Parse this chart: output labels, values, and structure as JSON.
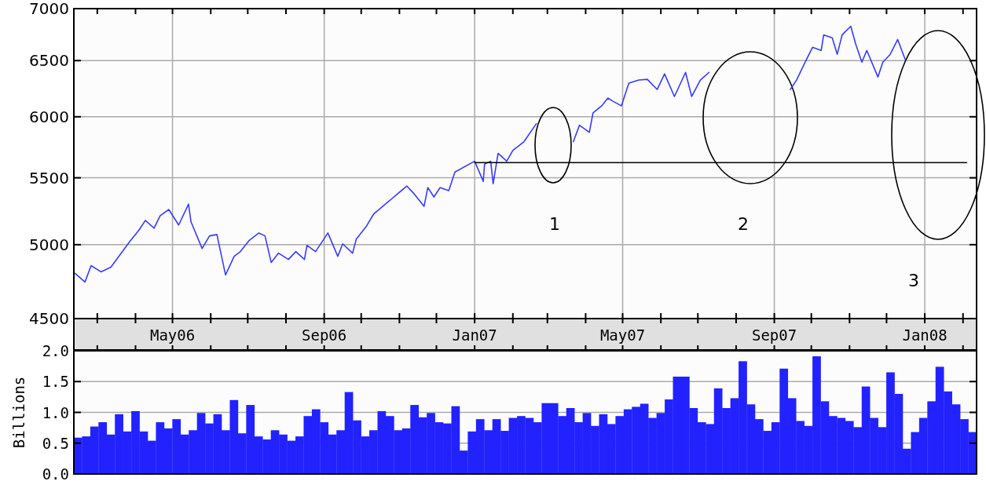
{
  "chart_data": [
    {
      "type": "line",
      "log": "y",
      "grid": true,
      "xlim": [
        "2006-02-10",
        "2008-02-12"
      ],
      "ylim": [
        4500,
        7000
      ],
      "yticks": [
        4500,
        5000,
        5500,
        6000,
        6500,
        7000
      ],
      "xticks": [
        {
          "value": "2006-03-01",
          "label": null
        },
        {
          "value": "2006-04-01",
          "label": null
        },
        {
          "value": "2006-05-01",
          "label": "May06"
        },
        {
          "value": "2006-06-01",
          "label": null
        },
        {
          "value": "2006-07-01",
          "label": null
        },
        {
          "value": "2006-08-01",
          "label": null
        },
        {
          "value": "2006-09-01",
          "label": "Sep06"
        },
        {
          "value": "2006-10-01",
          "label": null
        },
        {
          "value": "2006-11-01",
          "label": null
        },
        {
          "value": "2006-12-01",
          "label": null
        },
        {
          "value": "2007-01-01",
          "label": "Jan07"
        },
        {
          "value": "2007-02-01",
          "label": null
        },
        {
          "value": "2007-03-01",
          "label": null
        },
        {
          "value": "2007-04-01",
          "label": null
        },
        {
          "value": "2007-05-01",
          "label": "May07"
        },
        {
          "value": "2007-06-01",
          "label": null
        },
        {
          "value": "2007-07-01",
          "label": null
        },
        {
          "value": "2007-08-01",
          "label": null
        },
        {
          "value": "2007-09-01",
          "label": "Sep07"
        },
        {
          "value": "2007-10-01",
          "label": null
        },
        {
          "value": "2007-11-01",
          "label": null
        },
        {
          "value": "2007-12-01",
          "label": null
        },
        {
          "value": "2008-01-01",
          "label": "Jan08"
        },
        {
          "value": "2008-02-01",
          "label": null
        }
      ],
      "series": [
        {
          "color": "#3a3aff",
          "x": [
            "2006-02-11",
            "2006-02-19",
            "2006-02-24",
            "2006-03-04",
            "2006-03-12",
            "2006-03-27",
            "2006-04-04",
            "2006-04-09",
            "2006-04-16",
            "2006-04-21",
            "2006-04-28",
            "2006-05-06",
            "2006-05-14",
            "2006-05-16",
            "2006-05-25",
            "2006-05-31",
            "2006-06-06",
            "2006-06-13",
            "2006-06-20",
            "2006-06-25",
            "2006-07-02",
            "2006-07-10",
            "2006-07-15",
            "2006-07-20",
            "2006-07-26",
            "2006-08-03",
            "2006-08-09",
            "2006-08-16",
            "2006-08-18",
            "2006-08-25",
            "2006-09-04",
            "2006-09-12",
            "2006-09-16",
            "2006-09-24",
            "2006-09-27",
            "2006-10-05",
            "2006-10-11",
            "2006-10-26",
            "2006-11-07",
            "2006-11-13",
            "2006-11-21",
            "2006-11-24",
            "2006-11-29",
            "2006-12-04",
            "2006-12-11",
            "2006-12-16",
            "2007-01-01",
            "2007-01-08",
            "2007-01-09",
            "2007-01-14",
            "2007-01-16",
            "2007-01-20",
            "2007-01-27",
            "2007-02-01",
            "2007-02-10",
            "2007-02-20",
            "2007-03-07",
            "2007-03-22",
            "2007-03-27",
            "2007-04-04",
            "2007-04-07",
            "2007-04-14",
            "2007-04-19",
            "2007-04-23",
            "2007-04-30",
            "2007-05-06",
            "2007-05-14",
            "2007-05-21",
            "2007-05-29",
            "2007-06-04",
            "2007-06-12",
            "2007-06-21",
            "2007-06-26",
            "2007-07-03",
            "2007-07-10",
            "2007-08-13",
            "2007-09-14",
            "2007-09-19",
            "2007-09-26",
            "2007-10-02",
            "2007-10-09",
            "2007-10-11",
            "2007-10-18",
            "2007-10-22",
            "2007-10-26",
            "2007-11-02",
            "2007-11-06",
            "2007-11-11",
            "2007-11-15",
            "2007-11-24",
            "2007-11-28",
            "2007-12-04",
            "2007-12-10",
            "2007-12-16"
          ],
          "values": [
            4800,
            4741,
            4853,
            4810,
            4842,
            5018,
            5108,
            5176,
            5119,
            5211,
            5257,
            5142,
            5298,
            5165,
            4973,
            5063,
            5073,
            4789,
            4918,
            4951,
            5029,
            5084,
            5063,
            4875,
            4940,
            4896,
            4951,
            4896,
            4995,
            4951,
            5084,
            4918,
            5006,
            4940,
            5040,
            5130,
            5222,
            5340,
            5436,
            5375,
            5281,
            5424,
            5352,
            5424,
            5400,
            5545,
            5632,
            5472,
            5608,
            5632,
            5454,
            5695,
            5632,
            5720,
            5791,
            5941,
            null,
            5791,
            5928,
            5869,
            6034,
            6094,
            6162,
            6135,
            6094,
            6294,
            6322,
            6329,
            6238,
            6378,
            6176,
            6392,
            6176,
            6322,
            6392,
            null,
            6238,
            6322,
            6486,
            6624,
            6595,
            6743,
            6714,
            6559,
            6743,
            6826,
            6654,
            6486,
            6595,
            6350,
            6486,
            6559,
            6699,
            6514
          ]
        },
        {
          "color": "#000000",
          "x": [
            "2007-01-01",
            "2008-02-04"
          ],
          "values": [
            5620,
            5620
          ]
        }
      ],
      "annotations": [
        "1",
        "2",
        "3"
      ]
    },
    {
      "type": "bar",
      "grid": "y",
      "tick_labels": "y",
      "ylabel": "Billions",
      "ylim": [
        0,
        2
      ],
      "yticks": [
        {
          "value": 0,
          "label": "0.0"
        },
        {
          "value": 0.5,
          "label": "0.5"
        },
        {
          "value": 1,
          "label": "1.0"
        },
        {
          "value": 1.5,
          "label": "1.5"
        },
        {
          "value": 2,
          "label": "2.0"
        }
      ],
      "color": "#2222ff",
      "categories": [
        null,
        null,
        null,
        null,
        null,
        null,
        null,
        null,
        null,
        null,
        null,
        null,
        null,
        null,
        null,
        null,
        null,
        null,
        null,
        null,
        null,
        null,
        null,
        null,
        null,
        null,
        null,
        null,
        null,
        null,
        null,
        null,
        null,
        null,
        null,
        null,
        null,
        null,
        null,
        null,
        null,
        null,
        null,
        null,
        null,
        null,
        null,
        null,
        null,
        null,
        null,
        null,
        null,
        null,
        null,
        null,
        null,
        null,
        null,
        null,
        null,
        null,
        null,
        null,
        null,
        null,
        null,
        null,
        null,
        null,
        null,
        null,
        null,
        null,
        null,
        null,
        null,
        null,
        null,
        null,
        null,
        null,
        null,
        null,
        null,
        null,
        null,
        null,
        null,
        null,
        null,
        null,
        null,
        null,
        null,
        null,
        null,
        null,
        null,
        null,
        null,
        null,
        null,
        null,
        null,
        null,
        null,
        null,
        null,
        null
      ],
      "values": [
        0.59,
        0.61,
        0.77,
        0.84,
        0.64,
        0.97,
        0.69,
        1.02,
        0.69,
        0.54,
        0.84,
        0.74,
        0.89,
        0.64,
        0.71,
        0.99,
        0.82,
        0.97,
        0.71,
        1.2,
        0.66,
        1.12,
        0.61,
        0.56,
        0.71,
        0.64,
        0.54,
        0.61,
        0.94,
        1.05,
        0.84,
        0.64,
        0.71,
        1.33,
        0.87,
        0.61,
        0.71,
        1.02,
        0.94,
        0.71,
        0.74,
        1.12,
        0.92,
        0.99,
        0.84,
        0.82,
        1.1,
        0.38,
        0.69,
        0.89,
        0.71,
        0.89,
        0.7,
        0.91,
        0.94,
        0.91,
        0.84,
        1.15,
        1.15,
        0.94,
        1.07,
        0.84,
        0.99,
        0.78,
        0.97,
        0.81,
        0.94,
        1.05,
        1.09,
        1.14,
        0.91,
        0.99,
        1.21,
        1.58,
        1.58,
        1.07,
        0.84,
        0.81,
        1.39,
        1.07,
        1.23,
        1.83,
        1.13,
        0.89,
        0.7,
        0.84,
        1.71,
        1.23,
        0.86,
        0.78,
        1.91,
        1.18,
        0.94,
        0.91,
        0.86,
        0.76,
        1.42,
        0.91,
        0.76,
        1.65,
        1.3,
        0.41,
        0.68,
        0.91,
        1.18,
        1.74,
        1.34,
        1.13,
        0.89,
        0.68
      ]
    }
  ]
}
